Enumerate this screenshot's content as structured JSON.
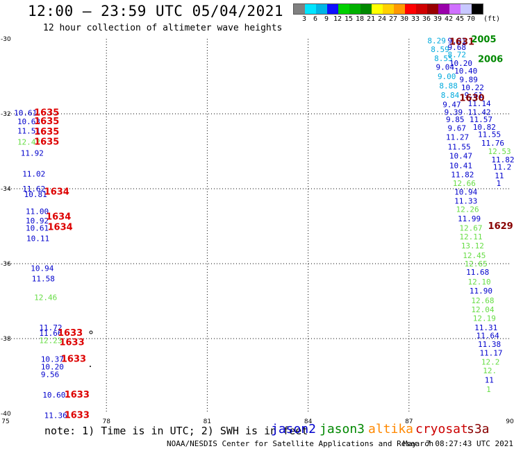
{
  "title": "12:00 – 23:59 UTC 05/04/2021",
  "subtitle": "12 hour collection of altimeter wave heights",
  "colorbar": {
    "unit": "(ft)",
    "levels": [
      "3",
      "6",
      "9",
      "12",
      "15",
      "18",
      "21",
      "24",
      "27",
      "30",
      "33",
      "36",
      "39",
      "42",
      "45",
      "70"
    ],
    "colors": [
      "#808080",
      "#00e5ff",
      "#00b5e5",
      "#1010ff",
      "#00d000",
      "#00b000",
      "#008800",
      "#ffff00",
      "#ffd000",
      "#ff9900",
      "#ff0000",
      "#d00000",
      "#990000",
      "#9900aa",
      "#d070ff",
      "#c8c8ff",
      "#000000"
    ]
  },
  "note": "note: 1) Time is in UTC; 2) SWH is in feet",
  "legend": [
    {
      "name": "jason2",
      "color": "#0000cc"
    },
    {
      "name": "jason3",
      "color": "#008800"
    },
    {
      "name": "altika",
      "color": "#ff8800"
    },
    {
      "name": "cryosat",
      "color": "#cc0000"
    },
    {
      "name": "s3a",
      "color": "#880000"
    }
  ],
  "footer": "NOAA/NESDIS Center for Satellite Applications and Research",
  "timestamp": "May  7 08:27:43 UTC 2021",
  "chart_data": {
    "type": "scatter",
    "xlim": [
      75,
      90
    ],
    "ylim": [
      -40,
      -30
    ],
    "x_ticks": [
      "75",
      "78",
      "81",
      "84",
      "87",
      "90"
    ],
    "y_ticks": [
      "-30",
      "-32",
      "-34",
      "-36",
      "-38",
      "-40"
    ],
    "grid": "dotted",
    "colors": {
      "j2": "#0000cc",
      "j2c": "#00aadd",
      "j3": "#66dd44",
      "cryo": "#dd0000",
      "s3a": "#880000",
      "j3d": "#008800"
    },
    "points": [
      {
        "x": 75.25,
        "y": -31.97,
        "v": "10.61",
        "c": "j2"
      },
      {
        "x": 75.35,
        "y": -32.2,
        "v": "10.63",
        "c": "j2"
      },
      {
        "x": 75.35,
        "y": -32.45,
        "v": "11.51",
        "c": "j2"
      },
      {
        "x": 75.35,
        "y": -32.75,
        "v": "12.42",
        "c": "j3"
      },
      {
        "x": 75.45,
        "y": -33.05,
        "v": "11.92",
        "c": "j2"
      },
      {
        "x": 75.5,
        "y": -33.6,
        "v": "11.02",
        "c": "j2"
      },
      {
        "x": 75.5,
        "y": -34.0,
        "v": "11.62",
        "c": "j2"
      },
      {
        "x": 75.55,
        "y": -34.15,
        "v": "10.81",
        "c": "j2"
      },
      {
        "x": 75.6,
        "y": -34.6,
        "v": "11.00",
        "c": "j2"
      },
      {
        "x": 75.6,
        "y": -34.85,
        "v": "10.92",
        "c": "j2"
      },
      {
        "x": 75.6,
        "y": -35.05,
        "v": "10.61",
        "c": "j2"
      },
      {
        "x": 75.62,
        "y": -35.32,
        "v": "10.11",
        "c": "j2"
      },
      {
        "x": 75.75,
        "y": -36.12,
        "v": "10.94",
        "c": "j2"
      },
      {
        "x": 75.78,
        "y": -36.4,
        "v": "11.58",
        "c": "j2"
      },
      {
        "x": 75.85,
        "y": -36.9,
        "v": "12.46",
        "c": "j3"
      },
      {
        "x": 76.0,
        "y": -37.7,
        "v": "11.72",
        "c": "j2"
      },
      {
        "x": 76.0,
        "y": -37.85,
        "v": "11.66",
        "c": "j2"
      },
      {
        "x": 76.0,
        "y": -38.05,
        "v": "12.23",
        "c": "j3"
      },
      {
        "x": 76.05,
        "y": -38.55,
        "v": "10.37",
        "c": "j2"
      },
      {
        "x": 76.05,
        "y": -38.75,
        "v": "10.20",
        "c": "j2"
      },
      {
        "x": 76.05,
        "y": -38.95,
        "v": "9.56",
        "c": "j2"
      },
      {
        "x": 76.1,
        "y": -39.5,
        "v": "10.60",
        "c": "j2"
      },
      {
        "x": 76.15,
        "y": -40.05,
        "v": "11.36",
        "c": "j2"
      },
      {
        "x": 75.85,
        "y": -31.97,
        "v": "1635",
        "c": "cryo"
      },
      {
        "x": 75.85,
        "y": -32.2,
        "v": "1635",
        "c": "cryo"
      },
      {
        "x": 75.85,
        "y": -32.48,
        "v": "1635",
        "c": "cryo"
      },
      {
        "x": 75.85,
        "y": -32.75,
        "v": "1635",
        "c": "cryo"
      },
      {
        "x": 76.15,
        "y": -34.08,
        "v": "1634",
        "c": "cryo"
      },
      {
        "x": 76.2,
        "y": -34.75,
        "v": "1634",
        "c": "cryo"
      },
      {
        "x": 76.25,
        "y": -35.03,
        "v": "1634",
        "c": "cryo"
      },
      {
        "x": 76.55,
        "y": -37.85,
        "v": "1633",
        "c": "cryo"
      },
      {
        "x": 76.6,
        "y": -38.1,
        "v": "1633",
        "c": "cryo"
      },
      {
        "x": 76.65,
        "y": -38.55,
        "v": "1633",
        "c": "cryo"
      },
      {
        "x": 76.75,
        "y": -39.5,
        "v": "1633",
        "c": "cryo"
      },
      {
        "x": 76.75,
        "y": -40.05,
        "v": "1633",
        "c": "cryo"
      },
      {
        "x": 87.55,
        "y": -30.05,
        "v": "8.29",
        "c": "j2c"
      },
      {
        "x": 87.65,
        "y": -30.28,
        "v": "8.59",
        "c": "j2c"
      },
      {
        "x": 87.75,
        "y": -30.52,
        "v": "8.55",
        "c": "j2c"
      },
      {
        "x": 87.8,
        "y": -30.75,
        "v": "9.04",
        "c": "j2"
      },
      {
        "x": 87.85,
        "y": -31.0,
        "v": "9.00",
        "c": "j2c"
      },
      {
        "x": 87.9,
        "y": -31.25,
        "v": "8.88",
        "c": "j2c"
      },
      {
        "x": 87.95,
        "y": -31.5,
        "v": "8.84",
        "c": "j2c"
      },
      {
        "x": 88.0,
        "y": -31.75,
        "v": "9.47",
        "c": "j2"
      },
      {
        "x": 88.05,
        "y": -31.95,
        "v": "9.39",
        "c": "j2"
      },
      {
        "x": 88.1,
        "y": -32.15,
        "v": "9.85",
        "c": "j2"
      },
      {
        "x": 88.15,
        "y": -32.38,
        "v": "9.67",
        "c": "j2"
      },
      {
        "x": 88.1,
        "y": -32.62,
        "v": "11.27",
        "c": "j2"
      },
      {
        "x": 88.15,
        "y": -32.88,
        "v": "11.55",
        "c": "j2"
      },
      {
        "x": 88.2,
        "y": -33.12,
        "v": "10.47",
        "c": "j2"
      },
      {
        "x": 88.2,
        "y": -33.38,
        "v": "10.41",
        "c": "j2"
      },
      {
        "x": 88.25,
        "y": -33.62,
        "v": "11.82",
        "c": "j2"
      },
      {
        "x": 88.3,
        "y": -33.85,
        "v": "12.66",
        "c": "j3"
      },
      {
        "x": 88.35,
        "y": -34.08,
        "v": "10.94",
        "c": "j2"
      },
      {
        "x": 88.35,
        "y": -34.32,
        "v": "11.33",
        "c": "j2"
      },
      {
        "x": 88.4,
        "y": -34.55,
        "v": "12.26",
        "c": "j3"
      },
      {
        "x": 88.45,
        "y": -34.8,
        "v": "11.99",
        "c": "j2"
      },
      {
        "x": 88.5,
        "y": -35.05,
        "v": "12.67",
        "c": "j3"
      },
      {
        "x": 88.5,
        "y": -35.28,
        "v": "12.11",
        "c": "j3"
      },
      {
        "x": 88.55,
        "y": -35.52,
        "v": "13.12",
        "c": "j3"
      },
      {
        "x": 88.6,
        "y": -35.78,
        "v": "12.45",
        "c": "j3"
      },
      {
        "x": 88.65,
        "y": -36.0,
        "v": "12.65",
        "c": "j3"
      },
      {
        "x": 88.7,
        "y": -36.22,
        "v": "11.68",
        "c": "j2"
      },
      {
        "x": 88.75,
        "y": -36.48,
        "v": "12.10",
        "c": "j3"
      },
      {
        "x": 88.8,
        "y": -36.72,
        "v": "11.90",
        "c": "j2"
      },
      {
        "x": 88.85,
        "y": -36.98,
        "v": "12.68",
        "c": "j3"
      },
      {
        "x": 88.85,
        "y": -37.22,
        "v": "12.04",
        "c": "j3"
      },
      {
        "x": 88.9,
        "y": -37.45,
        "v": "12.19",
        "c": "j3"
      },
      {
        "x": 88.95,
        "y": -37.7,
        "v": "11.31",
        "c": "j2"
      },
      {
        "x": 89.0,
        "y": -37.92,
        "v": "11.64",
        "c": "j2"
      },
      {
        "x": 89.05,
        "y": -38.15,
        "v": "11.38",
        "c": "j2"
      },
      {
        "x": 89.1,
        "y": -38.38,
        "v": "11.17",
        "c": "j2"
      },
      {
        "x": 89.15,
        "y": -38.62,
        "v": "12.2",
        "c": "j3"
      },
      {
        "x": 89.2,
        "y": -38.85,
        "v": "12.",
        "c": "j3"
      },
      {
        "x": 89.25,
        "y": -39.1,
        "v": "11",
        "c": "j2"
      },
      {
        "x": 89.3,
        "y": -39.35,
        "v": "1",
        "c": "j3"
      },
      {
        "x": 88.15,
        "y": -30.05,
        "v": "9.01",
        "c": "j2"
      },
      {
        "x": 88.15,
        "y": -30.22,
        "v": "9.68",
        "c": "j2"
      },
      {
        "x": 88.15,
        "y": -30.42,
        "v": "8.72",
        "c": "j2c"
      },
      {
        "x": 88.2,
        "y": -30.65,
        "v": "10.20",
        "c": "j2"
      },
      {
        "x": 88.35,
        "y": -30.85,
        "v": "10.40",
        "c": "j2"
      },
      {
        "x": 88.5,
        "y": -31.08,
        "v": "9.89",
        "c": "j2"
      },
      {
        "x": 88.55,
        "y": -31.3,
        "v": "10.22",
        "c": "j2"
      },
      {
        "x": 88.65,
        "y": -31.5,
        "v": "9.61",
        "c": "j2"
      },
      {
        "x": 88.75,
        "y": -31.72,
        "v": "11.14",
        "c": "j2"
      },
      {
        "x": 88.75,
        "y": -31.95,
        "v": "11.42",
        "c": "j2"
      },
      {
        "x": 88.8,
        "y": -32.15,
        "v": "11.57",
        "c": "j2"
      },
      {
        "x": 88.9,
        "y": -32.35,
        "v": "10.82",
        "c": "j2"
      },
      {
        "x": 89.05,
        "y": -32.55,
        "v": "11.55",
        "c": "j2"
      },
      {
        "x": 89.15,
        "y": -32.78,
        "v": "11.76",
        "c": "j2"
      },
      {
        "x": 89.35,
        "y": -33.0,
        "v": "12.53",
        "c": "j3"
      },
      {
        "x": 89.45,
        "y": -33.22,
        "v": "11.82",
        "c": "j2"
      },
      {
        "x": 89.5,
        "y": -33.42,
        "v": "11.2",
        "c": "j2"
      },
      {
        "x": 89.55,
        "y": -33.65,
        "v": "11",
        "c": "j2"
      },
      {
        "x": 89.6,
        "y": -33.85,
        "v": "1",
        "c": "j2"
      },
      {
        "x": 88.2,
        "y": -30.08,
        "v": "1631",
        "c": "s3a"
      },
      {
        "x": 88.5,
        "y": -31.58,
        "v": "1630",
        "c": "s3a"
      },
      {
        "x": 89.35,
        "y": -35.0,
        "v": "1629",
        "c": "s3a"
      },
      {
        "x": 88.85,
        "y": -30.02,
        "v": "2005",
        "c": "j3d"
      },
      {
        "x": 89.05,
        "y": -30.55,
        "v": "2006",
        "c": "j3d"
      }
    ]
  }
}
